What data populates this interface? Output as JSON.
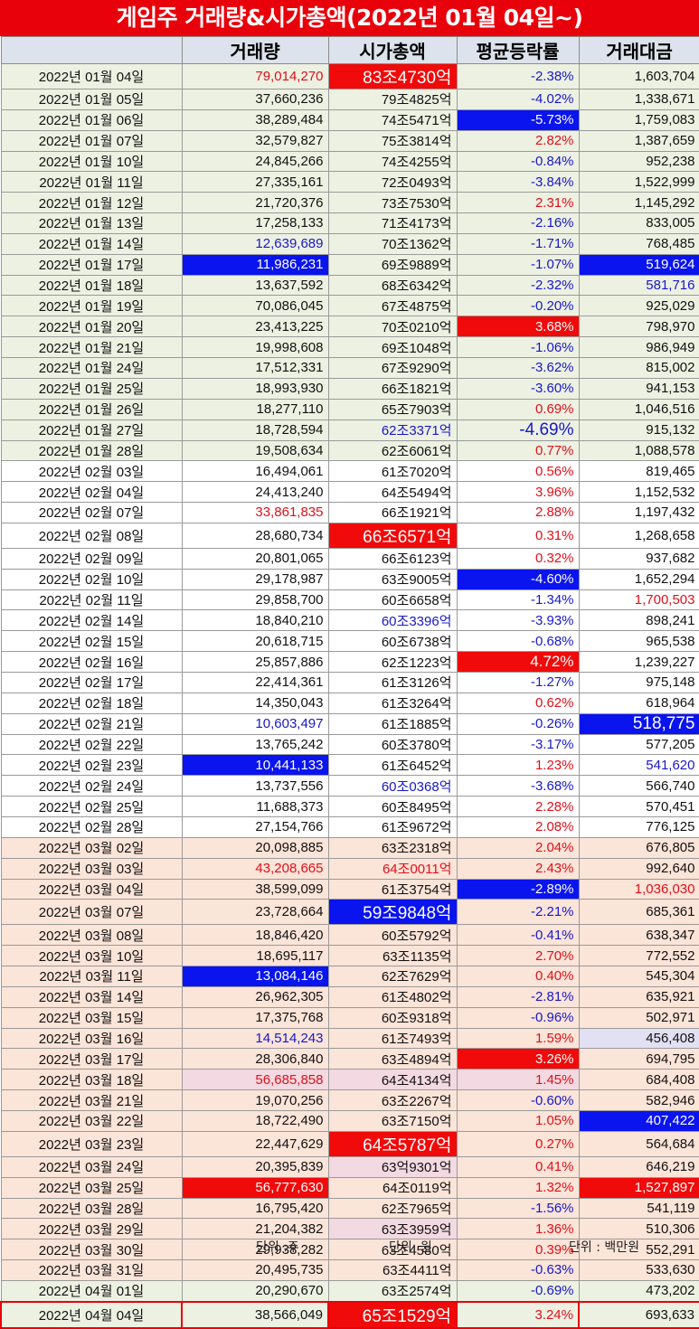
{
  "title": "게임주 거래량&시가총액(2022년 01월 04일~)",
  "headers": [
    "",
    "거래량",
    "시가총액",
    "평균등락률",
    "거래대금"
  ],
  "footer": {
    "unit1": "단위 :주",
    "unit2": "단위: 원",
    "unit3": "단위 : 백만원"
  },
  "rows": [
    {
      "date": "2022년 01월 04일",
      "vol": "79,014,270",
      "cap": "83조4730억",
      "rate": "-2.38%",
      "amt": "1,603,704"
    },
    {
      "date": "2022년 01월 05일",
      "vol": "37,660,236",
      "cap": "79조4825억",
      "rate": "-4.02%",
      "amt": "1,338,671"
    },
    {
      "date": "2022년 01월 06일",
      "vol": "38,289,484",
      "cap": "74조5471억",
      "rate": "-5.73%",
      "amt": "1,759,083"
    },
    {
      "date": "2022년 01월 07일",
      "vol": "32,579,827",
      "cap": "75조3814억",
      "rate": "2.82%",
      "amt": "1,387,659"
    },
    {
      "date": "2022년 01월 10일",
      "vol": "24,845,266",
      "cap": "74조4255억",
      "rate": "-0.84%",
      "amt": "952,238"
    },
    {
      "date": "2022년 01월 11일",
      "vol": "27,335,161",
      "cap": "72조0493억",
      "rate": "-3.84%",
      "amt": "1,522,999"
    },
    {
      "date": "2022년 01월 12일",
      "vol": "21,720,376",
      "cap": "73조7530억",
      "rate": "2.31%",
      "amt": "1,145,292"
    },
    {
      "date": "2022년 01월 13일",
      "vol": "17,258,133",
      "cap": "71조4173억",
      "rate": "-2.16%",
      "amt": "833,005"
    },
    {
      "date": "2022년 01월 14일",
      "vol": "12,639,689",
      "cap": "70조1362억",
      "rate": "-1.71%",
      "amt": "768,485"
    },
    {
      "date": "2022년 01월 17일",
      "vol": "11,986,231",
      "cap": "69조9889억",
      "rate": "-1.07%",
      "amt": "519,624"
    },
    {
      "date": "2022년 01월 18일",
      "vol": "13,637,592",
      "cap": "68조6342억",
      "rate": "-2.32%",
      "amt": "581,716"
    },
    {
      "date": "2022년 01월 19일",
      "vol": "70,086,045",
      "cap": "67조4875억",
      "rate": "-0.20%",
      "amt": "925,029"
    },
    {
      "date": "2022년 01월 20일",
      "vol": "23,413,225",
      "cap": "70조0210억",
      "rate": "3.68%",
      "amt": "798,970"
    },
    {
      "date": "2022년 01월 21일",
      "vol": "19,998,608",
      "cap": "69조1048억",
      "rate": "-1.06%",
      "amt": "986,949"
    },
    {
      "date": "2022년 01월 24일",
      "vol": "17,512,331",
      "cap": "67조9290억",
      "rate": "-3.62%",
      "amt": "815,002"
    },
    {
      "date": "2022년 01월 25일",
      "vol": "18,993,930",
      "cap": "66조1821억",
      "rate": "-3.60%",
      "amt": "941,153"
    },
    {
      "date": "2022년 01월 26일",
      "vol": "18,277,110",
      "cap": "65조7903억",
      "rate": "0.69%",
      "amt": "1,046,516"
    },
    {
      "date": "2022년 01월 27일",
      "vol": "18,728,594",
      "cap": "62조3371억",
      "rate": "-4.69%",
      "amt": "915,132"
    },
    {
      "date": "2022년 01월 28일",
      "vol": "19,508,634",
      "cap": "62조6061억",
      "rate": "0.77%",
      "amt": "1,088,578"
    },
    {
      "date": "2022년 02월 03일",
      "vol": "16,494,061",
      "cap": "61조7020억",
      "rate": "0.56%",
      "amt": "819,465"
    },
    {
      "date": "2022년 02월 04일",
      "vol": "24,413,240",
      "cap": "64조5494억",
      "rate": "3.96%",
      "amt": "1,152,532"
    },
    {
      "date": "2022년 02월 07일",
      "vol": "33,861,835",
      "cap": "66조1921억",
      "rate": "2.88%",
      "amt": "1,197,432"
    },
    {
      "date": "2022년 02월 08일",
      "vol": "28,680,734",
      "cap": "66조6571억",
      "rate": "0.31%",
      "amt": "1,268,658"
    },
    {
      "date": "2022년 02월 09일",
      "vol": "20,801,065",
      "cap": "66조6123억",
      "rate": "0.32%",
      "amt": "937,682"
    },
    {
      "date": "2022년 02월 10일",
      "vol": "29,178,987",
      "cap": "63조9005억",
      "rate": "-4.60%",
      "amt": "1,652,294"
    },
    {
      "date": "2022년 02월 11일",
      "vol": "29,858,700",
      "cap": "60조6658억",
      "rate": "-1.34%",
      "amt": "1,700,503"
    },
    {
      "date": "2022년 02월 14일",
      "vol": "18,840,210",
      "cap": "60조3396억",
      "rate": "-3.93%",
      "amt": "898,241"
    },
    {
      "date": "2022년 02월 15일",
      "vol": "20,618,715",
      "cap": "60조6738억",
      "rate": "-0.68%",
      "amt": "965,538"
    },
    {
      "date": "2022년 02월 16일",
      "vol": "25,857,886",
      "cap": "62조1223억",
      "rate": "4.72%",
      "amt": "1,239,227"
    },
    {
      "date": "2022년 02월 17일",
      "vol": "22,414,361",
      "cap": "61조3126억",
      "rate": "-1.27%",
      "amt": "975,148"
    },
    {
      "date": "2022년 02월 18일",
      "vol": "14,350,043",
      "cap": "61조3264억",
      "rate": "0.62%",
      "amt": "618,964"
    },
    {
      "date": "2022년 02월 21일",
      "vol": "10,603,497",
      "cap": "61조1885억",
      "rate": "-0.26%",
      "amt": "518,775"
    },
    {
      "date": "2022년 02월 22일",
      "vol": "13,765,242",
      "cap": "60조3780억",
      "rate": "-3.17%",
      "amt": "577,205"
    },
    {
      "date": "2022년 02월 23일",
      "vol": "10,441,133",
      "cap": "61조6452억",
      "rate": "1.23%",
      "amt": "541,620"
    },
    {
      "date": "2022년 02월 24일",
      "vol": "13,737,556",
      "cap": "60조0368억",
      "rate": "-3.68%",
      "amt": "566,740"
    },
    {
      "date": "2022년 02월 25일",
      "vol": "11,688,373",
      "cap": "60조8495억",
      "rate": "2.28%",
      "amt": "570,451"
    },
    {
      "date": "2022년 02월 28일",
      "vol": "27,154,766",
      "cap": "61조9672억",
      "rate": "2.08%",
      "amt": "776,125"
    },
    {
      "date": "2022년 03월 02일",
      "vol": "20,098,885",
      "cap": "63조2318억",
      "rate": "2.04%",
      "amt": "676,805"
    },
    {
      "date": "2022년 03월 03일",
      "vol": "43,208,665",
      "cap": "64조0011억",
      "rate": "2.43%",
      "amt": "992,640"
    },
    {
      "date": "2022년 03월 04일",
      "vol": "38,599,099",
      "cap": "61조3754억",
      "rate": "-2.89%",
      "amt": "1,036,030"
    },
    {
      "date": "2022년 03월 07일",
      "vol": "23,728,664",
      "cap": "59조9848억",
      "rate": "-2.21%",
      "amt": "685,361"
    },
    {
      "date": "2022년 03월 08일",
      "vol": "18,846,420",
      "cap": "60조5792억",
      "rate": "-0.41%",
      "amt": "638,347"
    },
    {
      "date": "2022년 03월 10일",
      "vol": "18,695,117",
      "cap": "63조1135억",
      "rate": "2.70%",
      "amt": "772,552"
    },
    {
      "date": "2022년 03월 11일",
      "vol": "13,084,146",
      "cap": "62조7629억",
      "rate": "0.40%",
      "amt": "545,304"
    },
    {
      "date": "2022년 03월 14일",
      "vol": "26,962,305",
      "cap": "61조4802억",
      "rate": "-2.81%",
      "amt": "635,921"
    },
    {
      "date": "2022년 03월 15일",
      "vol": "17,375,768",
      "cap": "60조9318억",
      "rate": "-0.96%",
      "amt": "502,971"
    },
    {
      "date": "2022년 03월 16일",
      "vol": "14,514,243",
      "cap": "61조7493억",
      "rate": "1.59%",
      "amt": "456,408"
    },
    {
      "date": "2022년 03월 17일",
      "vol": "28,306,840",
      "cap": "63조4894억",
      "rate": "3.26%",
      "amt": "694,795"
    },
    {
      "date": "2022년 03월 18일",
      "vol": "56,685,858",
      "cap": "64조4134억",
      "rate": "1.45%",
      "amt": "684,408"
    },
    {
      "date": "2022년 03월 21일",
      "vol": "19,070,256",
      "cap": "63조2267억",
      "rate": "-0.60%",
      "amt": "582,946"
    },
    {
      "date": "2022년 03월 22일",
      "vol": "18,722,490",
      "cap": "63조7150억",
      "rate": "1.05%",
      "amt": "407,422"
    },
    {
      "date": "2022년 03월 23일",
      "vol": "22,447,629",
      "cap": "64조5787억",
      "rate": "0.27%",
      "amt": "564,684"
    },
    {
      "date": "2022년 03월 24일",
      "vol": "20,395,839",
      "cap": "63억9301억",
      "rate": "0.41%",
      "amt": "646,219"
    },
    {
      "date": "2022년 03월 25일",
      "vol": "56,777,630",
      "cap": "64조0119억",
      "rate": "1.32%",
      "amt": "1,527,897"
    },
    {
      "date": "2022년 03월 28일",
      "vol": "16,795,420",
      "cap": "62조7965억",
      "rate": "-1.56%",
      "amt": "541,119"
    },
    {
      "date": "2022년 03월 29일",
      "vol": "21,204,382",
      "cap": "63조3959억",
      "rate": "1.36%",
      "amt": "510,306"
    },
    {
      "date": "2022년 03월 30일",
      "vol": "29,938,282",
      "cap": "63조4580억",
      "rate": "0.39%",
      "amt": "552,291"
    },
    {
      "date": "2022년 03월 31일",
      "vol": "20,495,735",
      "cap": "63조4411억",
      "rate": "-0.63%",
      "amt": "533,630"
    },
    {
      "date": "2022년 04월 01일",
      "vol": "20,290,670",
      "cap": "63조2574억",
      "rate": "-0.69%",
      "amt": "473,202"
    },
    {
      "date": "2022년 04월 04일",
      "vol": "38,566,049",
      "cap": "65조1529억",
      "rate": "3.24%",
      "amt": "693,633"
    }
  ]
}
